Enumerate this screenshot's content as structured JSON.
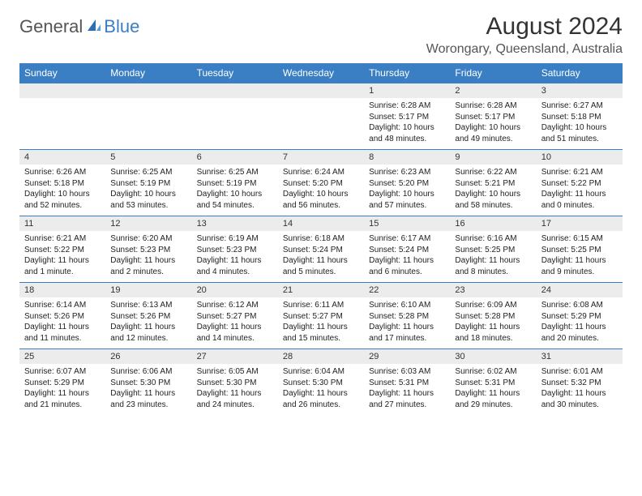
{
  "logo": {
    "text1": "General",
    "text2": "Blue"
  },
  "title": "August 2024",
  "location": "Worongary, Queensland, Australia",
  "colors": {
    "header_bg": "#3a7fc4",
    "date_bg": "#ececec",
    "border": "#3a7fc4"
  },
  "day_names": [
    "Sunday",
    "Monday",
    "Tuesday",
    "Wednesday",
    "Thursday",
    "Friday",
    "Saturday"
  ],
  "weeks": [
    {
      "dates": [
        "",
        "",
        "",
        "",
        "1",
        "2",
        "3"
      ],
      "info": [
        {
          "sunrise": "",
          "sunset": "",
          "daylight": ""
        },
        {
          "sunrise": "",
          "sunset": "",
          "daylight": ""
        },
        {
          "sunrise": "",
          "sunset": "",
          "daylight": ""
        },
        {
          "sunrise": "",
          "sunset": "",
          "daylight": ""
        },
        {
          "sunrise": "Sunrise: 6:28 AM",
          "sunset": "Sunset: 5:17 PM",
          "daylight": "Daylight: 10 hours and 48 minutes."
        },
        {
          "sunrise": "Sunrise: 6:28 AM",
          "sunset": "Sunset: 5:17 PM",
          "daylight": "Daylight: 10 hours and 49 minutes."
        },
        {
          "sunrise": "Sunrise: 6:27 AM",
          "sunset": "Sunset: 5:18 PM",
          "daylight": "Daylight: 10 hours and 51 minutes."
        }
      ]
    },
    {
      "dates": [
        "4",
        "5",
        "6",
        "7",
        "8",
        "9",
        "10"
      ],
      "info": [
        {
          "sunrise": "Sunrise: 6:26 AM",
          "sunset": "Sunset: 5:18 PM",
          "daylight": "Daylight: 10 hours and 52 minutes."
        },
        {
          "sunrise": "Sunrise: 6:25 AM",
          "sunset": "Sunset: 5:19 PM",
          "daylight": "Daylight: 10 hours and 53 minutes."
        },
        {
          "sunrise": "Sunrise: 6:25 AM",
          "sunset": "Sunset: 5:19 PM",
          "daylight": "Daylight: 10 hours and 54 minutes."
        },
        {
          "sunrise": "Sunrise: 6:24 AM",
          "sunset": "Sunset: 5:20 PM",
          "daylight": "Daylight: 10 hours and 56 minutes."
        },
        {
          "sunrise": "Sunrise: 6:23 AM",
          "sunset": "Sunset: 5:20 PM",
          "daylight": "Daylight: 10 hours and 57 minutes."
        },
        {
          "sunrise": "Sunrise: 6:22 AM",
          "sunset": "Sunset: 5:21 PM",
          "daylight": "Daylight: 10 hours and 58 minutes."
        },
        {
          "sunrise": "Sunrise: 6:21 AM",
          "sunset": "Sunset: 5:22 PM",
          "daylight": "Daylight: 11 hours and 0 minutes."
        }
      ]
    },
    {
      "dates": [
        "11",
        "12",
        "13",
        "14",
        "15",
        "16",
        "17"
      ],
      "info": [
        {
          "sunrise": "Sunrise: 6:21 AM",
          "sunset": "Sunset: 5:22 PM",
          "daylight": "Daylight: 11 hours and 1 minute."
        },
        {
          "sunrise": "Sunrise: 6:20 AM",
          "sunset": "Sunset: 5:23 PM",
          "daylight": "Daylight: 11 hours and 2 minutes."
        },
        {
          "sunrise": "Sunrise: 6:19 AM",
          "sunset": "Sunset: 5:23 PM",
          "daylight": "Daylight: 11 hours and 4 minutes."
        },
        {
          "sunrise": "Sunrise: 6:18 AM",
          "sunset": "Sunset: 5:24 PM",
          "daylight": "Daylight: 11 hours and 5 minutes."
        },
        {
          "sunrise": "Sunrise: 6:17 AM",
          "sunset": "Sunset: 5:24 PM",
          "daylight": "Daylight: 11 hours and 6 minutes."
        },
        {
          "sunrise": "Sunrise: 6:16 AM",
          "sunset": "Sunset: 5:25 PM",
          "daylight": "Daylight: 11 hours and 8 minutes."
        },
        {
          "sunrise": "Sunrise: 6:15 AM",
          "sunset": "Sunset: 5:25 PM",
          "daylight": "Daylight: 11 hours and 9 minutes."
        }
      ]
    },
    {
      "dates": [
        "18",
        "19",
        "20",
        "21",
        "22",
        "23",
        "24"
      ],
      "info": [
        {
          "sunrise": "Sunrise: 6:14 AM",
          "sunset": "Sunset: 5:26 PM",
          "daylight": "Daylight: 11 hours and 11 minutes."
        },
        {
          "sunrise": "Sunrise: 6:13 AM",
          "sunset": "Sunset: 5:26 PM",
          "daylight": "Daylight: 11 hours and 12 minutes."
        },
        {
          "sunrise": "Sunrise: 6:12 AM",
          "sunset": "Sunset: 5:27 PM",
          "daylight": "Daylight: 11 hours and 14 minutes."
        },
        {
          "sunrise": "Sunrise: 6:11 AM",
          "sunset": "Sunset: 5:27 PM",
          "daylight": "Daylight: 11 hours and 15 minutes."
        },
        {
          "sunrise": "Sunrise: 6:10 AM",
          "sunset": "Sunset: 5:28 PM",
          "daylight": "Daylight: 11 hours and 17 minutes."
        },
        {
          "sunrise": "Sunrise: 6:09 AM",
          "sunset": "Sunset: 5:28 PM",
          "daylight": "Daylight: 11 hours and 18 minutes."
        },
        {
          "sunrise": "Sunrise: 6:08 AM",
          "sunset": "Sunset: 5:29 PM",
          "daylight": "Daylight: 11 hours and 20 minutes."
        }
      ]
    },
    {
      "dates": [
        "25",
        "26",
        "27",
        "28",
        "29",
        "30",
        "31"
      ],
      "info": [
        {
          "sunrise": "Sunrise: 6:07 AM",
          "sunset": "Sunset: 5:29 PM",
          "daylight": "Daylight: 11 hours and 21 minutes."
        },
        {
          "sunrise": "Sunrise: 6:06 AM",
          "sunset": "Sunset: 5:30 PM",
          "daylight": "Daylight: 11 hours and 23 minutes."
        },
        {
          "sunrise": "Sunrise: 6:05 AM",
          "sunset": "Sunset: 5:30 PM",
          "daylight": "Daylight: 11 hours and 24 minutes."
        },
        {
          "sunrise": "Sunrise: 6:04 AM",
          "sunset": "Sunset: 5:30 PM",
          "daylight": "Daylight: 11 hours and 26 minutes."
        },
        {
          "sunrise": "Sunrise: 6:03 AM",
          "sunset": "Sunset: 5:31 PM",
          "daylight": "Daylight: 11 hours and 27 minutes."
        },
        {
          "sunrise": "Sunrise: 6:02 AM",
          "sunset": "Sunset: 5:31 PM",
          "daylight": "Daylight: 11 hours and 29 minutes."
        },
        {
          "sunrise": "Sunrise: 6:01 AM",
          "sunset": "Sunset: 5:32 PM",
          "daylight": "Daylight: 11 hours and 30 minutes."
        }
      ]
    }
  ]
}
